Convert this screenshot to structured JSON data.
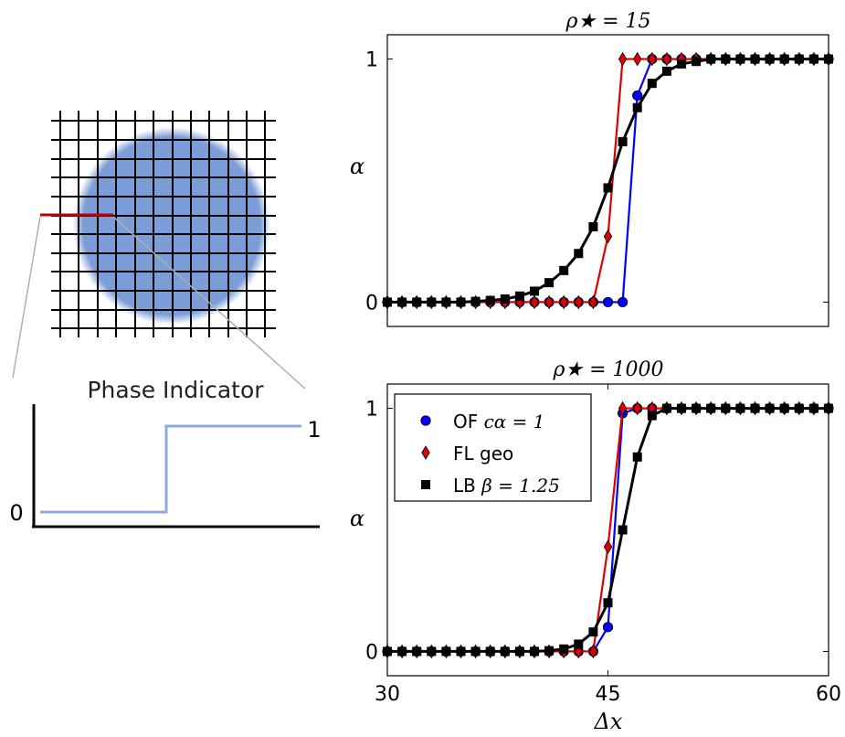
{
  "schematic": {
    "caption": "Phase Indicator",
    "step_low_label": "0",
    "step_high_label": "1",
    "droplet_color": "#7b9ed8",
    "grid_color": "#000000",
    "probe_line_color": "#c00000",
    "step_color": "#8faadc"
  },
  "shared_xlabel": "Δx",
  "chart_data": [
    {
      "type": "line",
      "title": "ρ★ = 15",
      "xlabel": "",
      "ylabel": "α",
      "xlim": [
        30,
        60
      ],
      "ylim": [
        -0.1,
        1.1
      ],
      "yticks": [
        0,
        1
      ],
      "xticks": [],
      "legend": null,
      "series": [
        {
          "name": "",
          "color": "#0000ff",
          "marker": "circle",
          "x": [
            30,
            31,
            32,
            33,
            34,
            35,
            36,
            37,
            38,
            39,
            40,
            41,
            42,
            43,
            44,
            45,
            46,
            47,
            48,
            49,
            50,
            51,
            52,
            53,
            54,
            55,
            56,
            57,
            58,
            59,
            60
          ],
          "y": [
            0,
            0,
            0,
            0,
            0,
            0,
            0,
            0,
            0,
            0,
            0,
            0,
            0,
            0,
            0,
            0,
            0,
            0.85,
            1,
            1,
            1,
            1,
            1,
            1,
            1,
            1,
            1,
            1,
            1,
            1,
            1
          ]
        },
        {
          "name": "",
          "color": "#dd0000",
          "marker": "diamond",
          "x": [
            30,
            31,
            32,
            33,
            34,
            35,
            36,
            37,
            38,
            39,
            40,
            41,
            42,
            43,
            44,
            45,
            46,
            47,
            48,
            49,
            50,
            51,
            52,
            53,
            54,
            55,
            56,
            57,
            58,
            59,
            60
          ],
          "y": [
            0,
            0,
            0,
            0,
            0,
            0,
            0,
            0,
            0,
            0,
            0,
            0,
            0,
            0,
            0,
            0.27,
            1,
            1,
            1,
            1,
            1,
            1,
            1,
            1,
            1,
            1,
            1,
            1,
            1,
            1,
            1
          ]
        },
        {
          "name": "",
          "color": "#000000",
          "marker": "square",
          "x": [
            30,
            31,
            32,
            33,
            34,
            35,
            36,
            37,
            38,
            39,
            40,
            41,
            42,
            43,
            44,
            45,
            46,
            47,
            48,
            49,
            50,
            51,
            52,
            53,
            54,
            55,
            56,
            57,
            58,
            59,
            60
          ],
          "y": [
            0,
            0,
            0,
            0,
            0,
            0,
            0.003,
            0.007,
            0.013,
            0.025,
            0.045,
            0.08,
            0.13,
            0.2,
            0.31,
            0.47,
            0.66,
            0.8,
            0.9,
            0.95,
            0.98,
            0.99,
            1,
            1,
            1,
            1,
            1,
            1,
            1,
            1,
            1
          ]
        }
      ]
    },
    {
      "type": "line",
      "title": "ρ★ = 1000",
      "xlabel": "Δx",
      "ylabel": "α",
      "xlim": [
        30,
        60
      ],
      "ylim": [
        -0.1,
        1.1
      ],
      "yticks": [
        0,
        1
      ],
      "xticks": [
        30,
        45,
        60
      ],
      "legend": "top-left",
      "series": [
        {
          "name": "OF c_α = 1",
          "color": "#0000ff",
          "marker": "circle",
          "x": [
            30,
            31,
            32,
            33,
            34,
            35,
            36,
            37,
            38,
            39,
            40,
            41,
            42,
            43,
            44,
            45,
            46,
            47,
            48,
            49,
            50,
            51,
            52,
            53,
            54,
            55,
            56,
            57,
            58,
            59,
            60
          ],
          "y": [
            0,
            0,
            0,
            0,
            0,
            0,
            0,
            0,
            0,
            0,
            0,
            0,
            0,
            0,
            0,
            0.1,
            0.98,
            1,
            1,
            1,
            1,
            1,
            1,
            1,
            1,
            1,
            1,
            1,
            1,
            1,
            1
          ]
        },
        {
          "name": "FL geo",
          "color": "#dd0000",
          "marker": "diamond",
          "x": [
            30,
            31,
            32,
            33,
            34,
            35,
            36,
            37,
            38,
            39,
            40,
            41,
            42,
            43,
            44,
            45,
            46,
            47,
            48,
            49,
            50,
            51,
            52,
            53,
            54,
            55,
            56,
            57,
            58,
            59,
            60
          ],
          "y": [
            0,
            0,
            0,
            0,
            0,
            0,
            0,
            0,
            0,
            0,
            0,
            0,
            0,
            0,
            0,
            0.43,
            1,
            1,
            1,
            1,
            1,
            1,
            1,
            1,
            1,
            1,
            1,
            1,
            1,
            1,
            1
          ]
        },
        {
          "name": "LB β = 1.25",
          "color": "#000000",
          "marker": "square",
          "x": [
            30,
            31,
            32,
            33,
            34,
            35,
            36,
            37,
            38,
            39,
            40,
            41,
            42,
            43,
            44,
            45,
            46,
            47,
            48,
            49,
            50,
            51,
            52,
            53,
            54,
            55,
            56,
            57,
            58,
            59,
            60
          ],
          "y": [
            0,
            0,
            0,
            0,
            0,
            0,
            0,
            0,
            0,
            0,
            0,
            0.003,
            0.01,
            0.03,
            0.08,
            0.2,
            0.5,
            0.8,
            0.97,
            1,
            1,
            1,
            1,
            1,
            1,
            1,
            1,
            1,
            1,
            1,
            1
          ]
        }
      ]
    }
  ]
}
